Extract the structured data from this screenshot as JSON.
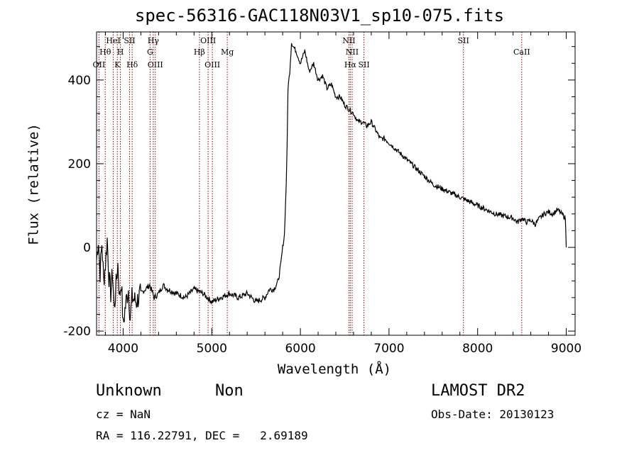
{
  "chart_data": {
    "type": "line",
    "title": "spec-56316-GAC118N03V1_sp10-075.fits",
    "xlabel": "Wavelength (Å)",
    "ylabel": "Flux (relative)",
    "xlim": [
      3700,
      9100
    ],
    "ylim": [
      -210,
      515
    ],
    "x_ticks": [
      4000,
      5000,
      6000,
      7000,
      8000,
      9000
    ],
    "y_ticks": [
      -200,
      0,
      200,
      400
    ],
    "series": [
      {
        "x": [
          3700,
          3720,
          3740,
          3760,
          3780,
          3800,
          3820,
          3840,
          3860,
          3880,
          3900,
          3920,
          3940,
          3960,
          3980,
          4000,
          4020,
          4040,
          4060,
          4080,
          4100,
          4150,
          4200,
          4250,
          4300,
          4350,
          4400,
          4450,
          4500,
          4600,
          4700,
          4800,
          4900,
          5000,
          5100,
          5200,
          5300,
          5400,
          5500,
          5600,
          5650,
          5700,
          5750,
          5780,
          5800,
          5820,
          5840,
          5850,
          5860,
          5880,
          5900,
          5920,
          5950,
          6000,
          6050,
          6100,
          6150,
          6200,
          6250,
          6300,
          6350,
          6400,
          6450,
          6500,
          6550,
          6600,
          6650,
          6700,
          6750,
          6800,
          6850,
          6900,
          6950,
          7000,
          7100,
          7200,
          7300,
          7400,
          7500,
          7600,
          7700,
          7800,
          7900,
          8000,
          8100,
          8200,
          8300,
          8400,
          8450,
          8500,
          8550,
          8600,
          8650,
          8700,
          8750,
          8800,
          8850,
          8900,
          8950,
          8990,
          9000
        ],
        "y": [
          -30,
          20,
          -60,
          10,
          -80,
          -40,
          20,
          -70,
          -110,
          -60,
          -150,
          -90,
          -40,
          -120,
          -80,
          -190,
          -150,
          -120,
          -100,
          -170,
          -120,
          -130,
          -110,
          -100,
          -90,
          -120,
          -110,
          -90,
          -100,
          -110,
          -120,
          -100,
          -110,
          -130,
          -120,
          -110,
          -120,
          -110,
          -130,
          -120,
          -100,
          -100,
          -80,
          -40,
          0,
          30,
          150,
          240,
          380,
          420,
          490,
          480,
          470,
          440,
          470,
          420,
          440,
          400,
          410,
          380,
          390,
          360,
          360,
          340,
          330,
          320,
          300,
          300,
          290,
          300,
          280,
          260,
          260,
          250,
          230,
          210,
          190,
          170,
          150,
          140,
          130,
          120,
          110,
          100,
          90,
          80,
          75,
          70,
          60,
          70,
          60,
          65,
          55,
          70,
          80,
          85,
          80,
          90,
          80,
          70,
          0
        ]
      }
    ],
    "lines": [
      {
        "name": "OII",
        "x": 3727,
        "row": 3
      },
      {
        "name": "Hθ",
        "x": 3798,
        "row": 2
      },
      {
        "name": "HeI",
        "x": 3889,
        "row": 1
      },
      {
        "name": "K",
        "x": 3934,
        "row": 3
      },
      {
        "name": "H",
        "x": 3969,
        "row": 2
      },
      {
        "name": "SII",
        "x": 4072,
        "row": 1
      },
      {
        "name": "Hδ",
        "x": 4102,
        "row": 3
      },
      {
        "name": "Hγ",
        "x": 4340,
        "row": 1
      },
      {
        "name": "G",
        "x": 4304,
        "row": 2
      },
      {
        "name": "OIII",
        "x": 4363,
        "row": 3
      },
      {
        "name": "Hβ",
        "x": 4861,
        "row": 2
      },
      {
        "name": "OIII",
        "x": 4959,
        "row": 1
      },
      {
        "name": "OIII",
        "x": 5007,
        "row": 3
      },
      {
        "name": "Mg",
        "x": 5175,
        "row": 2
      },
      {
        "name": "NII",
        "x": 6548,
        "row": 1
      },
      {
        "name": "NII",
        "x": 6584,
        "row": 2
      },
      {
        "name": "Hα",
        "x": 6563,
        "row": 3
      },
      {
        "name": "SII",
        "x": 6717,
        "row": 3
      },
      {
        "name": "SII",
        "x": 7840,
        "row": 1
      },
      {
        "name": "CaII",
        "x": 8498,
        "row": 2
      }
    ],
    "line_color": "#8b0000",
    "grid": false
  },
  "footer": {
    "class_label": "Unknown",
    "subclass_label": "Non",
    "survey": "LAMOST DR2",
    "cz": "cz = NaN",
    "obs_date": "Obs-Date: 20130123",
    "radec": "RA = 116.22791, DEC =   2.69189"
  }
}
